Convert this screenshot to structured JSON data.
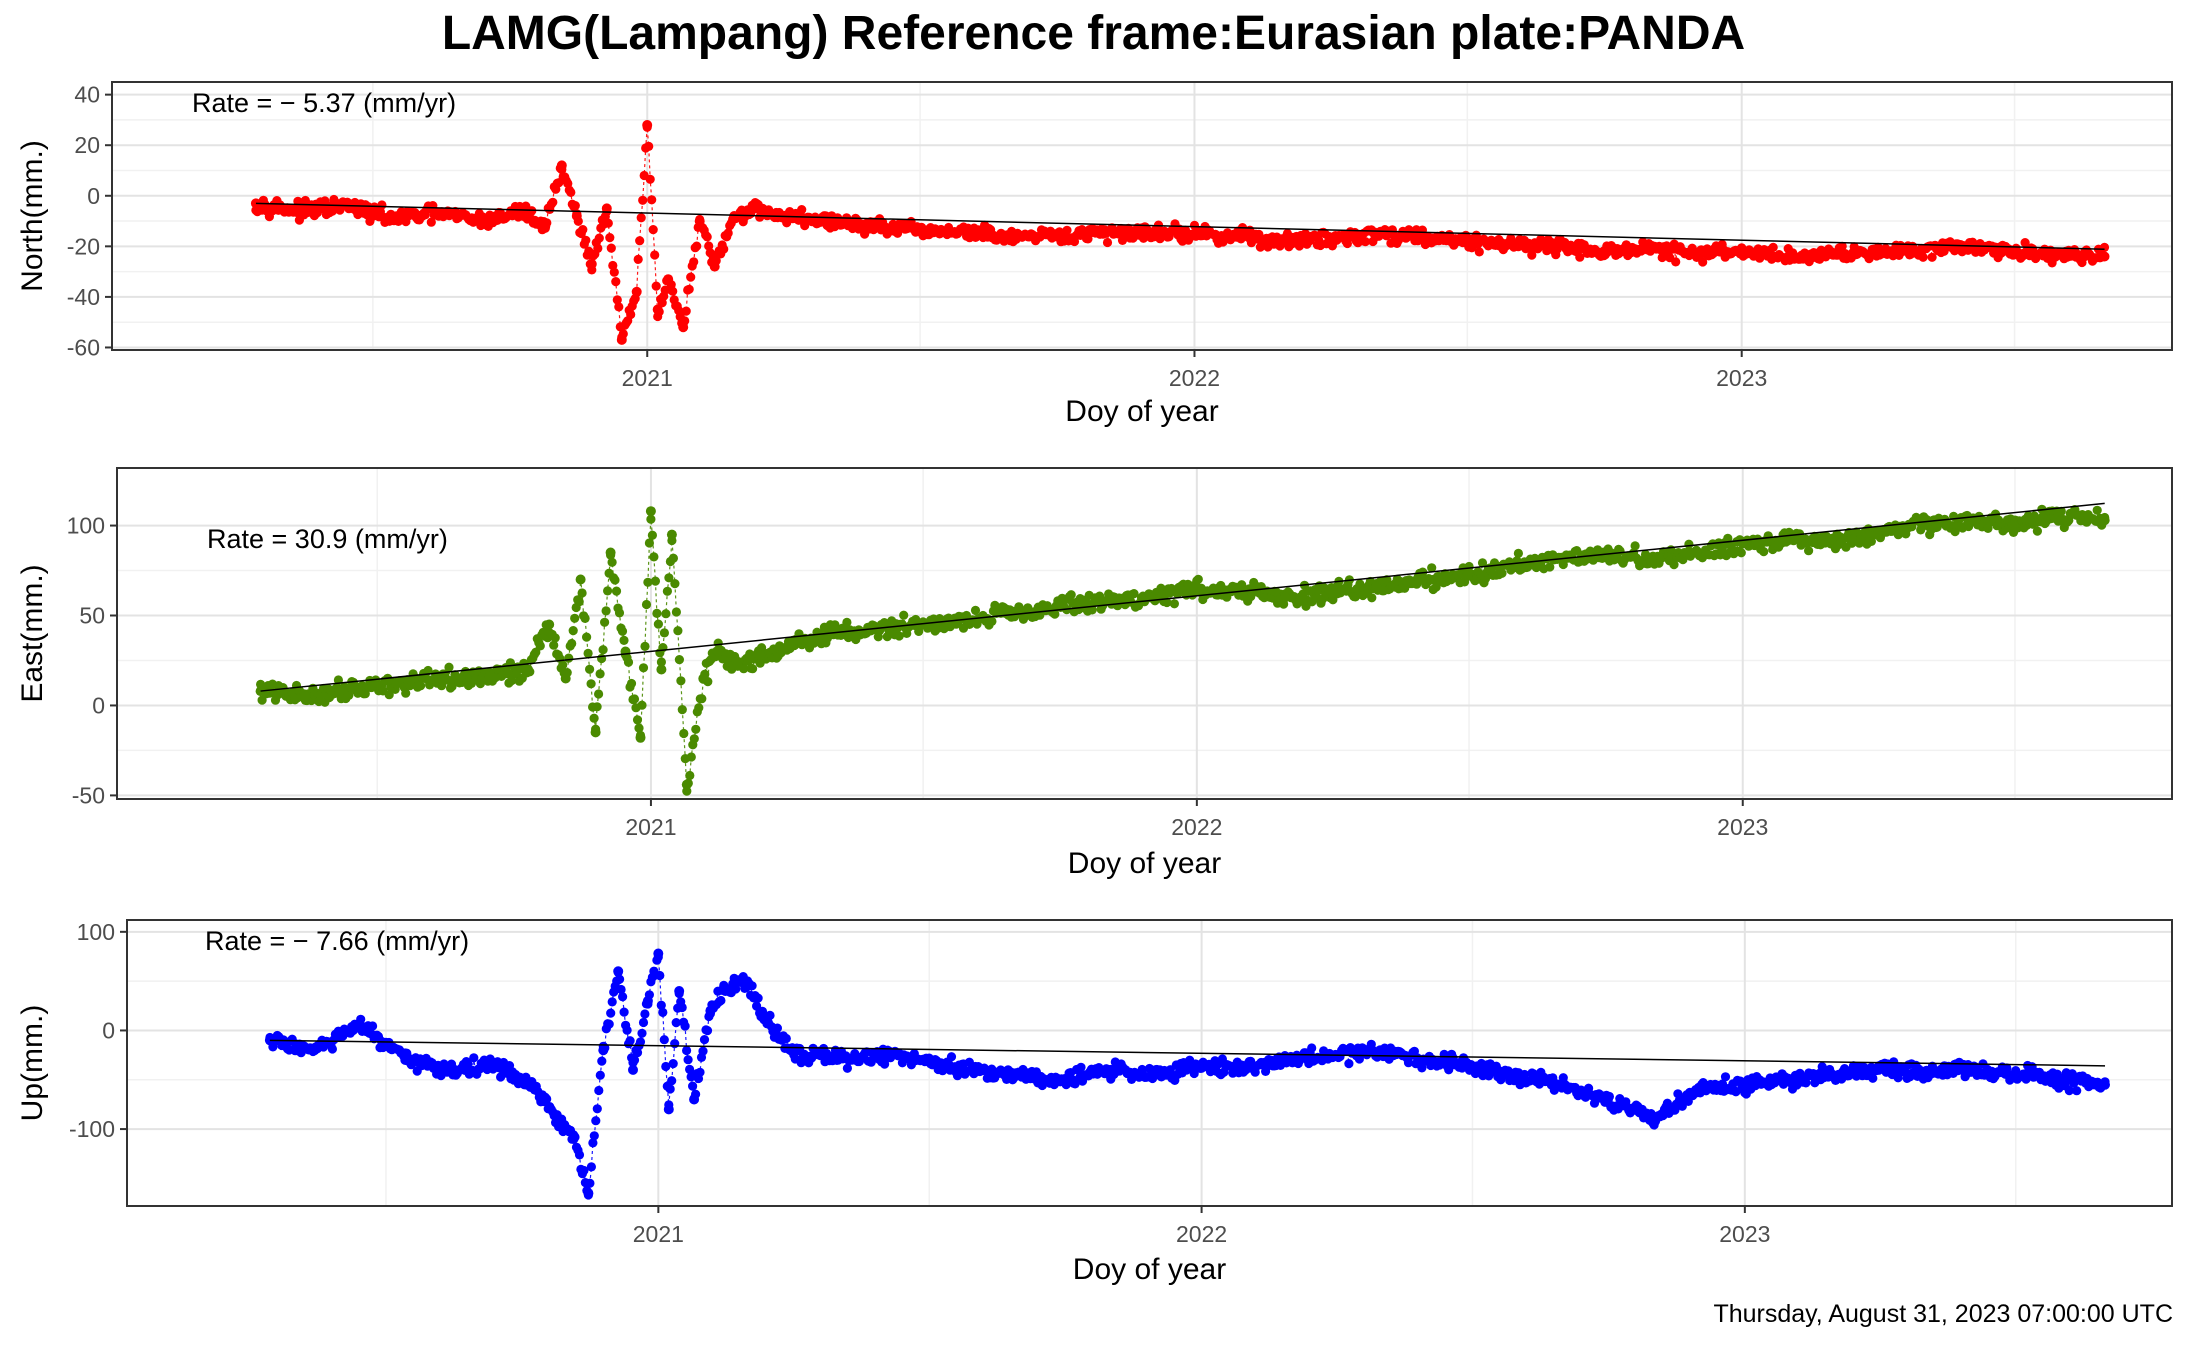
{
  "title": "LAMG(Lampang) Reference frame:Eurasian plate:PANDA",
  "footer": "Thursday, August 31, 2023 07:00:00 UTC",
  "chart_data": [
    {
      "type": "scatter",
      "component": "North",
      "ylabel": "North(mm.)",
      "xlabel": "Doy of year",
      "rate_label": "Rate = − 5.37 (mm/yr)",
      "rate_mm_per_yr": -5.37,
      "color": "#ff0000",
      "xlim": [
        "2020-01-10",
        "2023-10-15"
      ],
      "ylim": [
        -61,
        45
      ],
      "y_ticks": [
        40,
        20,
        0,
        -20,
        -40,
        -60
      ],
      "x_ticks": [
        "2021",
        "2022",
        "2023"
      ],
      "grid": true,
      "series": [
        {
          "x": [
            "2020-04-15",
            "2020-05-15",
            "2020-06-15",
            "2020-07-15",
            "2020-08-15",
            "2020-09-15",
            "2020-10-10",
            "2020-10-25",
            "2020-11-05",
            "2020-11-15",
            "2020-11-25",
            "2020-12-05",
            "2020-12-15",
            "2020-12-25",
            "2021-01-01",
            "2021-01-08",
            "2021-01-15",
            "2021-01-25",
            "2021-02-05",
            "2021-02-15",
            "2021-02-28",
            "2021-03-15",
            "2021-04-01",
            "2021-05-01",
            "2021-06-01",
            "2021-07-01",
            "2021-08-01",
            "2021-09-01",
            "2021-10-01",
            "2021-11-01",
            "2021-12-01",
            "2022-01-01",
            "2022-02-01",
            "2022-03-01",
            "2022-04-01",
            "2022-05-01",
            "2022-06-01",
            "2022-07-01",
            "2022-08-01",
            "2022-09-01",
            "2022-10-01",
            "2022-11-01",
            "2022-12-01",
            "2023-01-01",
            "2023-02-01",
            "2023-03-01",
            "2023-04-01",
            "2023-05-01",
            "2023-06-01",
            "2023-07-01",
            "2023-08-01",
            "2023-08-31"
          ],
          "y": [
            -3,
            -6,
            -4,
            -9,
            -7,
            -10,
            -6,
            -12,
            12,
            -8,
            -27,
            -5,
            -57,
            -38,
            28,
            -45,
            -33,
            -52,
            -10,
            -28,
            -8,
            -5,
            -8,
            -10,
            -12,
            -14,
            -14,
            -17,
            -16,
            -15,
            -14,
            -15,
            -16,
            -18,
            -17,
            -15,
            -16,
            -18,
            -19,
            -20,
            -22,
            -21,
            -23,
            -22,
            -24,
            -23,
            -22,
            -21,
            -20,
            -22,
            -23,
            -24
          ]
        }
      ]
    },
    {
      "type": "scatter",
      "component": "East",
      "ylabel": "East(mm.)",
      "xlabel": "Doy of year",
      "rate_label": "Rate = 30.9 (mm/yr)",
      "rate_mm_per_yr": 30.9,
      "color": "#4a8a00",
      "xlim": [
        "2020-01-10",
        "2023-10-15"
      ],
      "ylim": [
        -52,
        132
      ],
      "y_ticks": [
        100,
        50,
        0,
        -50
      ],
      "x_ticks": [
        "2021",
        "2022",
        "2023"
      ],
      "grid": true,
      "series": [
        {
          "x": [
            "2020-04-15",
            "2020-05-15",
            "2020-06-15",
            "2020-07-15",
            "2020-08-15",
            "2020-09-15",
            "2020-10-10",
            "2020-10-25",
            "2020-11-05",
            "2020-11-15",
            "2020-11-25",
            "2020-12-05",
            "2020-12-15",
            "2020-12-25",
            "2021-01-01",
            "2021-01-08",
            "2021-01-15",
            "2021-01-25",
            "2021-02-05",
            "2021-02-15",
            "2021-02-28",
            "2021-03-15",
            "2021-04-01",
            "2021-05-01",
            "2021-06-01",
            "2021-07-01",
            "2021-08-01",
            "2021-09-01",
            "2021-10-01",
            "2021-11-01",
            "2021-12-01",
            "2022-01-01",
            "2022-02-01",
            "2022-03-01",
            "2022-04-01",
            "2022-05-01",
            "2022-06-01",
            "2022-07-01",
            "2022-08-01",
            "2022-09-01",
            "2022-10-01",
            "2022-11-01",
            "2022-12-01",
            "2023-01-01",
            "2023-02-01",
            "2023-03-01",
            "2023-04-01",
            "2023-05-01",
            "2023-06-01",
            "2023-07-01",
            "2023-08-01",
            "2023-08-31"
          ],
          "y": [
            8,
            5,
            10,
            12,
            14,
            16,
            20,
            45,
            15,
            70,
            -15,
            85,
            30,
            -18,
            108,
            20,
            95,
            -44,
            15,
            30,
            22,
            28,
            32,
            40,
            42,
            45,
            48,
            52,
            55,
            58,
            60,
            65,
            63,
            60,
            62,
            66,
            70,
            72,
            78,
            82,
            85,
            80,
            85,
            90,
            92,
            90,
            95,
            100,
            102,
            100,
            105,
            103
          ]
        }
      ]
    },
    {
      "type": "scatter",
      "component": "Up",
      "ylabel": "Up(mm.)",
      "xlabel": "Doy of year",
      "rate_label": "Rate = − 7.66 (mm/yr)",
      "rate_mm_per_yr": -7.66,
      "color": "#0000ff",
      "xlim": [
        "2020-01-10",
        "2023-10-15"
      ],
      "ylim": [
        -178,
        112
      ],
      "y_ticks": [
        100,
        0,
        -100
      ],
      "x_ticks": [
        "2021",
        "2022",
        "2023"
      ],
      "grid": true,
      "series": [
        {
          "x": [
            "2020-04-15",
            "2020-05-15",
            "2020-06-15",
            "2020-07-15",
            "2020-08-15",
            "2020-09-15",
            "2020-10-10",
            "2020-10-25",
            "2020-11-05",
            "2020-11-15",
            "2020-11-25",
            "2020-12-05",
            "2020-12-15",
            "2020-12-25",
            "2021-01-01",
            "2021-01-08",
            "2021-01-15",
            "2021-01-25",
            "2021-02-05",
            "2021-02-15",
            "2021-02-28",
            "2021-03-15",
            "2021-04-01",
            "2021-05-01",
            "2021-06-01",
            "2021-07-01",
            "2021-08-01",
            "2021-09-01",
            "2021-10-01",
            "2021-11-01",
            "2021-12-01",
            "2022-01-01",
            "2022-02-01",
            "2022-03-01",
            "2022-04-01",
            "2022-05-01",
            "2022-06-01",
            "2022-07-01",
            "2022-08-01",
            "2022-09-01",
            "2022-10-01",
            "2022-11-01",
            "2022-12-01",
            "2023-01-01",
            "2023-02-01",
            "2023-03-01",
            "2023-04-01",
            "2023-05-01",
            "2023-06-01",
            "2023-07-01",
            "2023-08-01",
            "2023-08-31"
          ],
          "y": [
            -10,
            -20,
            5,
            -30,
            -40,
            -35,
            -60,
            -90,
            -110,
            -165,
            -20,
            60,
            -40,
            30,
            78,
            -80,
            40,
            -70,
            20,
            40,
            50,
            10,
            -20,
            -30,
            -25,
            -30,
            -40,
            -45,
            -50,
            -40,
            -45,
            -35,
            -38,
            -30,
            -25,
            -20,
            -30,
            -35,
            -45,
            -55,
            -70,
            -90,
            -60,
            -55,
            -50,
            -45,
            -40,
            -42,
            -38,
            -45,
            -50,
            -55
          ]
        }
      ]
    }
  ]
}
